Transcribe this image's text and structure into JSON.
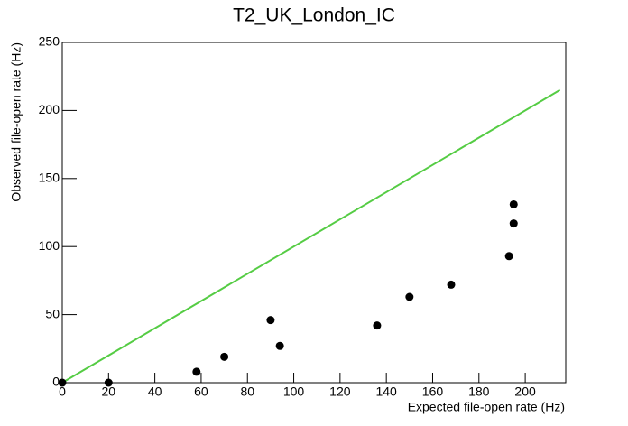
{
  "chart_data": {
    "type": "scatter",
    "title": "T2_UK_London_IC",
    "x_label": "Expected file-open rate (Hz)",
    "y_label": "Observed file-open rate (Hz)",
    "x": [
      0,
      20,
      58,
      70,
      90,
      94,
      136,
      150,
      168,
      193,
      195,
      195
    ],
    "y": [
      0,
      0,
      8,
      19,
      46,
      27,
      42,
      63,
      72,
      93,
      117,
      131
    ],
    "color": "#000000",
    "line": {
      "x": [
        0,
        215
      ],
      "y": [
        0,
        215
      ],
      "color": "#55cc44"
    },
    "xlim": [
      0,
      217.5
    ],
    "ylim": [
      0,
      250
    ],
    "xticks": [
      0,
      20,
      40,
      60,
      80,
      100,
      120,
      140,
      160,
      180,
      200
    ],
    "yticks": [
      0,
      50,
      100,
      150,
      200,
      250
    ]
  }
}
